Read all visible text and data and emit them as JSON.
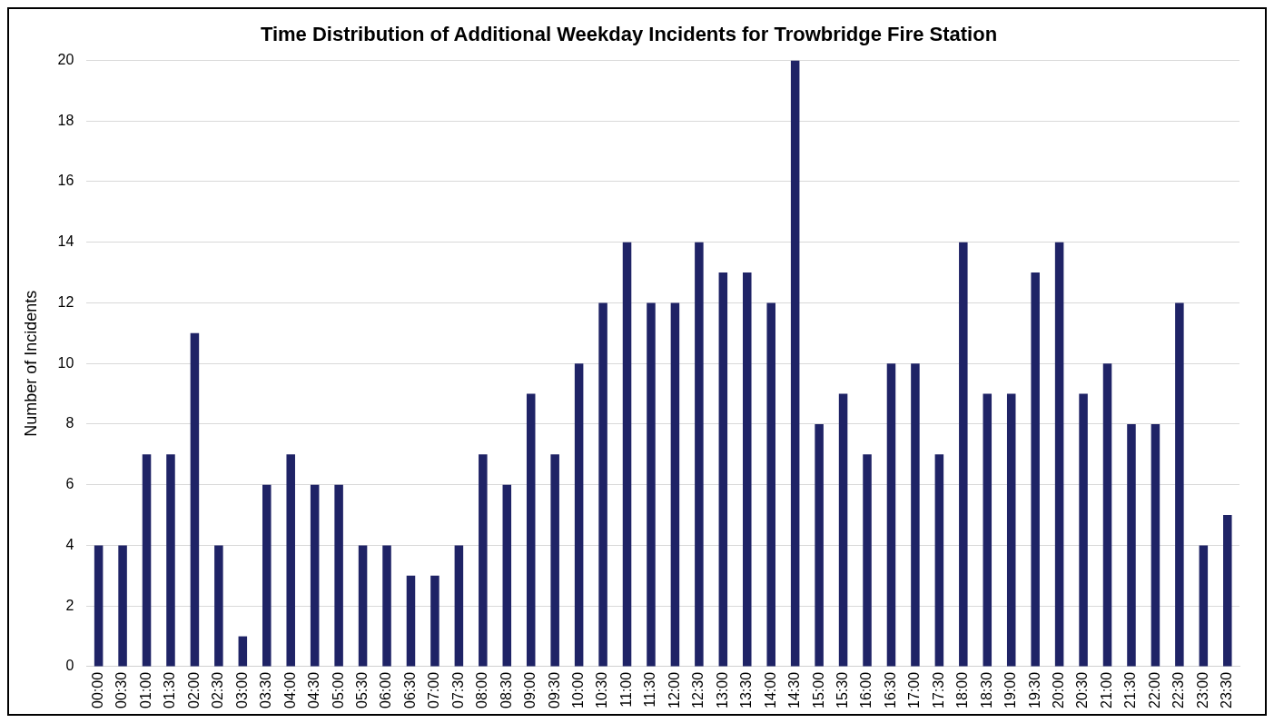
{
  "chart_data": {
    "type": "bar",
    "title": "Time Distribution of Additional Weekday Incidents for Trowbridge Fire Station",
    "ylabel": "Number of Incidents",
    "categories": [
      "00:00",
      "00:30",
      "01:00",
      "01:30",
      "02:00",
      "02:30",
      "03:00",
      "03:30",
      "04:00",
      "04:30",
      "05:00",
      "05:30",
      "06:00",
      "06:30",
      "07:00",
      "07:30",
      "08:00",
      "08:30",
      "09:00",
      "09:30",
      "10:00",
      "10:30",
      "11:00",
      "11:30",
      "12:00",
      "12:30",
      "13:00",
      "13:30",
      "14:00",
      "14:30",
      "15:00",
      "15:30",
      "16:00",
      "16:30",
      "17:00",
      "17:30",
      "18:00",
      "18:30",
      "19:00",
      "19:30",
      "20:00",
      "20:30",
      "21:00",
      "21:30",
      "22:00",
      "22:30",
      "23:00",
      "23:30"
    ],
    "values": [
      4,
      4,
      7,
      7,
      11,
      4,
      1,
      6,
      7,
      6,
      6,
      4,
      4,
      3,
      3,
      4,
      7,
      6,
      9,
      7,
      10,
      12,
      14,
      12,
      12,
      14,
      13,
      13,
      12,
      20,
      8,
      9,
      7,
      10,
      10,
      7,
      14,
      9,
      9,
      13,
      14,
      9,
      10,
      8,
      8,
      12,
      4,
      5
    ],
    "color": "#1f2366",
    "ylim": [
      0,
      20
    ],
    "yticks": [
      0,
      2,
      4,
      6,
      8,
      10,
      12,
      14,
      16,
      18,
      20
    ],
    "grid": "y",
    "legend": false
  }
}
